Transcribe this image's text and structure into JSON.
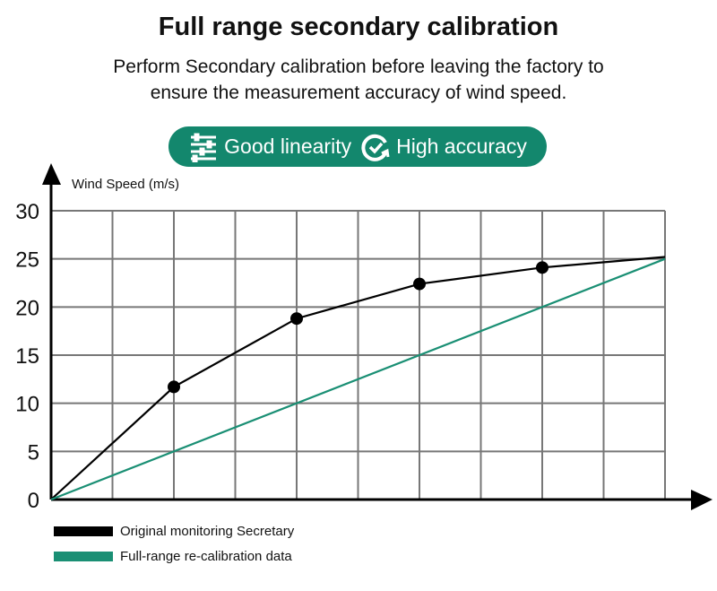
{
  "header": {
    "title": "Full range secondary calibration",
    "subtitle_line1": "Perform Secondary calibration before leaving the factory to",
    "subtitle_line2": "ensure the measurement accuracy of wind speed."
  },
  "badges": [
    {
      "icon": "sliders-icon",
      "label": "Good linearity"
    },
    {
      "icon": "refresh-check-icon",
      "label": "High accuracy"
    }
  ],
  "colors": {
    "accent": "#13876d",
    "original": "#000000",
    "recalibrated": "#1a8f74"
  },
  "chart_data": {
    "type": "line",
    "title": "",
    "xlabel": "",
    "ylabel": "Wind Speed (m/s)",
    "xlim": [
      0,
      10
    ],
    "ylim": [
      0,
      30
    ],
    "yticks": [
      0,
      5,
      10,
      15,
      20,
      25,
      30
    ],
    "xgrid_count": 10,
    "grid": true,
    "legend_position": "bottom-left",
    "series": [
      {
        "name": "Original monitoring Secretary",
        "color": "#000000",
        "x": [
          0,
          2,
          4,
          6,
          8,
          10
        ],
        "y": [
          0,
          11.7,
          18.8,
          22.4,
          24.1,
          25.2
        ],
        "markers": [
          2,
          4,
          6,
          8
        ]
      },
      {
        "name": "Full-range re-calibration data",
        "color": "#1a8f74",
        "x": [
          0,
          10
        ],
        "y": [
          0,
          25
        ],
        "markers": []
      }
    ]
  }
}
